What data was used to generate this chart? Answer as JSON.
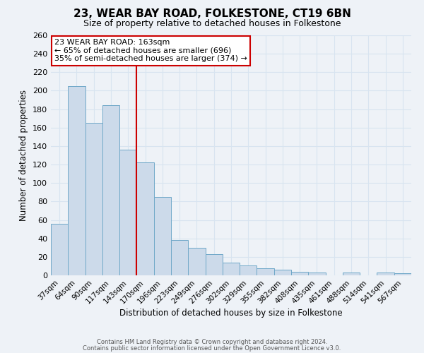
{
  "title": "23, WEAR BAY ROAD, FOLKESTONE, CT19 6BN",
  "subtitle": "Size of property relative to detached houses in Folkestone",
  "xlabel": "Distribution of detached houses by size in Folkestone",
  "ylabel": "Number of detached properties",
  "bar_labels": [
    "37sqm",
    "64sqm",
    "90sqm",
    "117sqm",
    "143sqm",
    "170sqm",
    "196sqm",
    "223sqm",
    "249sqm",
    "276sqm",
    "302sqm",
    "329sqm",
    "355sqm",
    "382sqm",
    "408sqm",
    "435sqm",
    "461sqm",
    "488sqm",
    "514sqm",
    "541sqm",
    "567sqm"
  ],
  "bar_values": [
    56,
    205,
    165,
    184,
    136,
    122,
    85,
    38,
    30,
    23,
    14,
    11,
    8,
    6,
    4,
    3,
    0,
    3,
    0,
    3,
    2
  ],
  "bar_color": "#ccdaea",
  "bar_edge_color": "#6fa8c8",
  "vline_x": 4.5,
  "vline_color": "#cc0000",
  "annotation_title": "23 WEAR BAY ROAD: 163sqm",
  "annotation_line1": "← 65% of detached houses are smaller (696)",
  "annotation_line2": "35% of semi-detached houses are larger (374) →",
  "annotation_box_color": "#ffffff",
  "annotation_box_edge": "#cc0000",
  "ylim": [
    0,
    260
  ],
  "yticks": [
    0,
    20,
    40,
    60,
    80,
    100,
    120,
    140,
    160,
    180,
    200,
    220,
    240,
    260
  ],
  "footer1": "Contains HM Land Registry data © Crown copyright and database right 2024.",
  "footer2": "Contains public sector information licensed under the Open Government Licence v3.0.",
  "bg_color": "#eef2f7",
  "grid_color": "#d8e4f0"
}
